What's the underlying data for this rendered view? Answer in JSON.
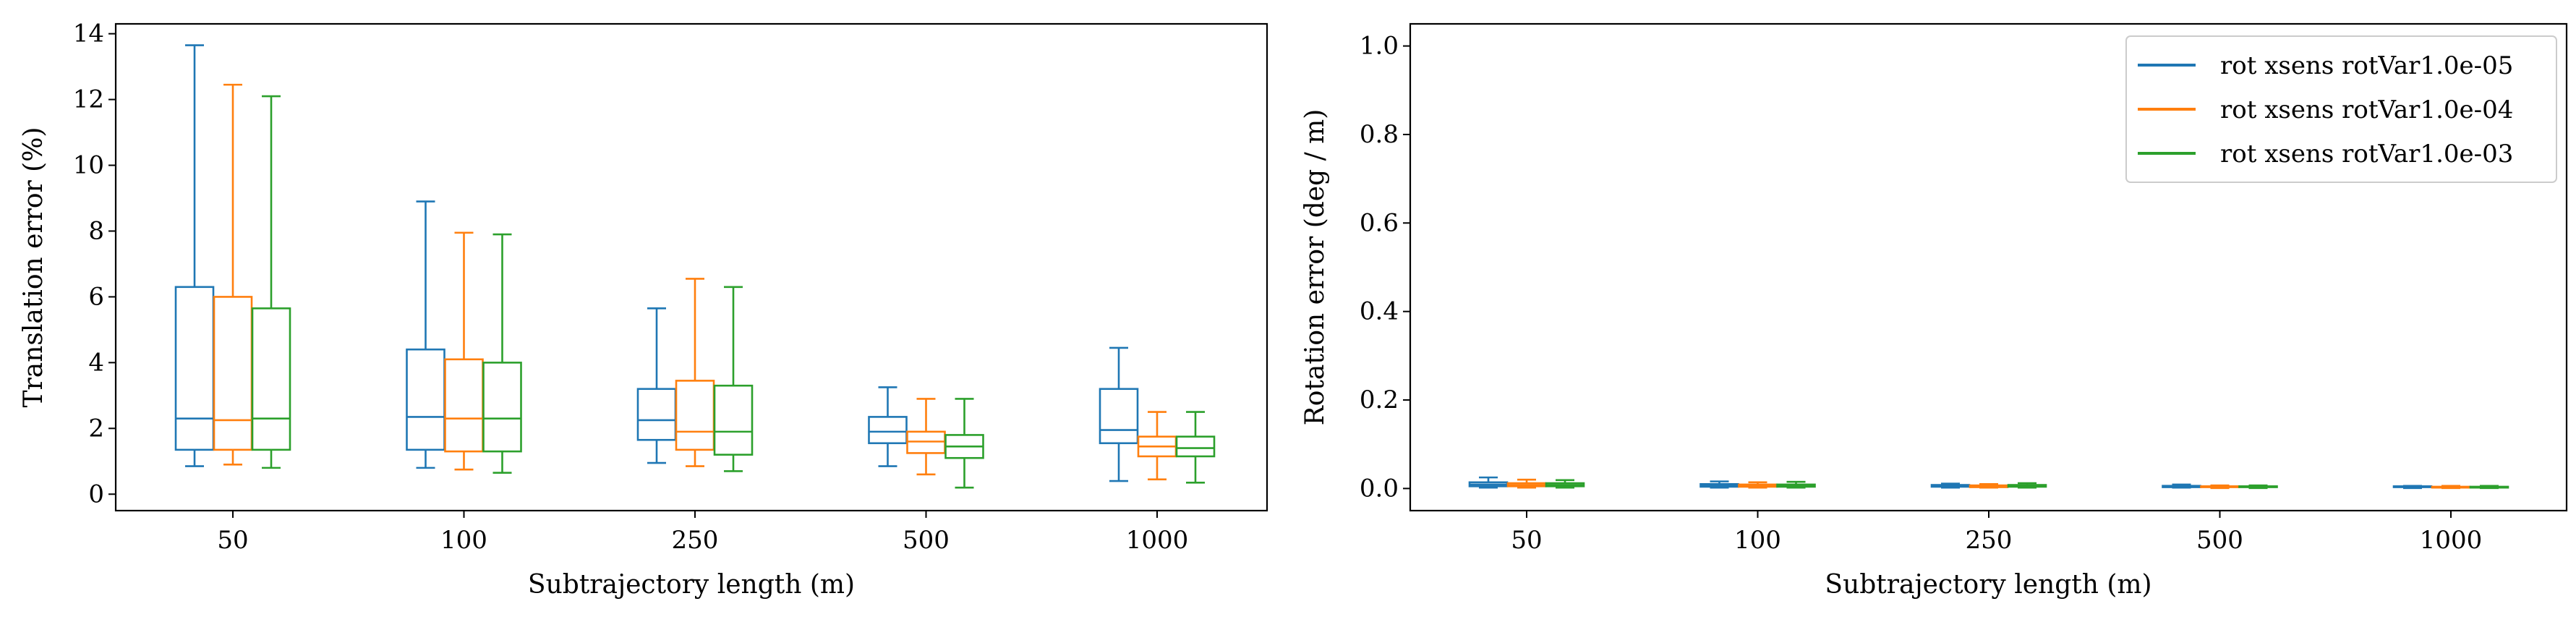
{
  "chart_data": [
    {
      "type": "boxplot",
      "xlabel": "Subtrajectory length (m)",
      "ylabel": "Translation error (%)",
      "categories": [
        "50",
        "100",
        "250",
        "500",
        "1000"
      ],
      "ylim": [
        -0.5,
        14.3
      ],
      "yticks": [
        0,
        2,
        4,
        6,
        8,
        10,
        12,
        14
      ],
      "grid": false,
      "series": [
        {
          "color": "#1f77b4",
          "boxes": [
            {
              "whislo": 0.85,
              "q1": 1.35,
              "med": 2.3,
              "q3": 6.3,
              "whishi": 13.65
            },
            {
              "whislo": 0.8,
              "q1": 1.35,
              "med": 2.35,
              "q3": 4.4,
              "whishi": 8.9
            },
            {
              "whislo": 0.95,
              "q1": 1.65,
              "med": 2.25,
              "q3": 3.2,
              "whishi": 5.65
            },
            {
              "whislo": 0.85,
              "q1": 1.55,
              "med": 1.9,
              "q3": 2.35,
              "whishi": 3.25
            },
            {
              "whislo": 0.4,
              "q1": 1.55,
              "med": 1.95,
              "q3": 3.2,
              "whishi": 4.45
            }
          ]
        },
        {
          "color": "#ff7f0e",
          "boxes": [
            {
              "whislo": 0.9,
              "q1": 1.35,
              "med": 2.25,
              "q3": 6.0,
              "whishi": 12.45
            },
            {
              "whislo": 0.75,
              "q1": 1.3,
              "med": 2.3,
              "q3": 4.1,
              "whishi": 7.95
            },
            {
              "whislo": 0.85,
              "q1": 1.35,
              "med": 1.9,
              "q3": 3.45,
              "whishi": 6.55
            },
            {
              "whislo": 0.6,
              "q1": 1.25,
              "med": 1.6,
              "q3": 1.9,
              "whishi": 2.9
            },
            {
              "whislo": 0.45,
              "q1": 1.15,
              "med": 1.45,
              "q3": 1.75,
              "whishi": 2.5
            }
          ]
        },
        {
          "color": "#2ca02c",
          "boxes": [
            {
              "whislo": 0.8,
              "q1": 1.35,
              "med": 2.3,
              "q3": 5.65,
              "whishi": 12.1
            },
            {
              "whislo": 0.65,
              "q1": 1.3,
              "med": 2.3,
              "q3": 4.0,
              "whishi": 7.9
            },
            {
              "whislo": 0.7,
              "q1": 1.2,
              "med": 1.9,
              "q3": 3.3,
              "whishi": 6.3
            },
            {
              "whislo": 0.2,
              "q1": 1.1,
              "med": 1.45,
              "q3": 1.8,
              "whishi": 2.9
            },
            {
              "whislo": 0.35,
              "q1": 1.15,
              "med": 1.4,
              "q3": 1.75,
              "whishi": 2.5
            }
          ]
        }
      ]
    },
    {
      "type": "boxplot",
      "xlabel": "Subtrajectory length (m)",
      "ylabel": "Rotation error (deg / m)",
      "categories": [
        "50",
        "100",
        "250",
        "500",
        "1000"
      ],
      "ylim": [
        -0.05,
        1.05
      ],
      "yticks": [
        "0.0",
        "0.2",
        "0.4",
        "0.6",
        "0.8",
        "1.0"
      ],
      "grid": false,
      "legend": {
        "position": "top-right",
        "entries": [
          {
            "label": "rot xsens rotVar1.0e-05",
            "color": "#1f77b4"
          },
          {
            "label": "rot xsens rotVar1.0e-04",
            "color": "#ff7f0e"
          },
          {
            "label": "rot xsens rotVar1.0e-03",
            "color": "#2ca02c"
          }
        ]
      },
      "series": [
        {
          "name": "rot xsens rotVar1.0e-05",
          "color": "#1f77b4",
          "boxes": [
            {
              "whislo": 0.002,
              "q1": 0.005,
              "med": 0.009,
              "q3": 0.014,
              "whishi": 0.025
            },
            {
              "whislo": 0.002,
              "q1": 0.004,
              "med": 0.007,
              "q3": 0.01,
              "whishi": 0.016
            },
            {
              "whislo": 0.002,
              "q1": 0.004,
              "med": 0.006,
              "q3": 0.008,
              "whishi": 0.011
            },
            {
              "whislo": 0.002,
              "q1": 0.003,
              "med": 0.005,
              "q3": 0.006,
              "whishi": 0.009
            },
            {
              "whislo": 0.001,
              "q1": 0.003,
              "med": 0.004,
              "q3": 0.005,
              "whishi": 0.006
            }
          ]
        },
        {
          "name": "rot xsens rotVar1.0e-04",
          "color": "#ff7f0e",
          "boxes": [
            {
              "whislo": 0.002,
              "q1": 0.005,
              "med": 0.008,
              "q3": 0.012,
              "whishi": 0.02
            },
            {
              "whislo": 0.002,
              "q1": 0.004,
              "med": 0.006,
              "q3": 0.009,
              "whishi": 0.014
            },
            {
              "whislo": 0.002,
              "q1": 0.003,
              "med": 0.005,
              "q3": 0.007,
              "whishi": 0.01
            },
            {
              "whislo": 0.001,
              "q1": 0.003,
              "med": 0.004,
              "q3": 0.005,
              "whishi": 0.007
            },
            {
              "whislo": 0.001,
              "q1": 0.002,
              "med": 0.003,
              "q3": 0.004,
              "whishi": 0.006
            }
          ]
        },
        {
          "name": "rot xsens rotVar1.0e-03",
          "color": "#2ca02c",
          "boxes": [
            {
              "whislo": 0.002,
              "q1": 0.005,
              "med": 0.008,
              "q3": 0.012,
              "whishi": 0.019
            },
            {
              "whislo": 0.002,
              "q1": 0.004,
              "med": 0.006,
              "q3": 0.009,
              "whishi": 0.015
            },
            {
              "whislo": 0.002,
              "q1": 0.004,
              "med": 0.006,
              "q3": 0.008,
              "whishi": 0.012
            },
            {
              "whislo": 0.001,
              "q1": 0.003,
              "med": 0.004,
              "q3": 0.005,
              "whishi": 0.007
            },
            {
              "whislo": 0.001,
              "q1": 0.002,
              "med": 0.003,
              "q3": 0.004,
              "whishi": 0.006
            }
          ]
        }
      ]
    }
  ]
}
